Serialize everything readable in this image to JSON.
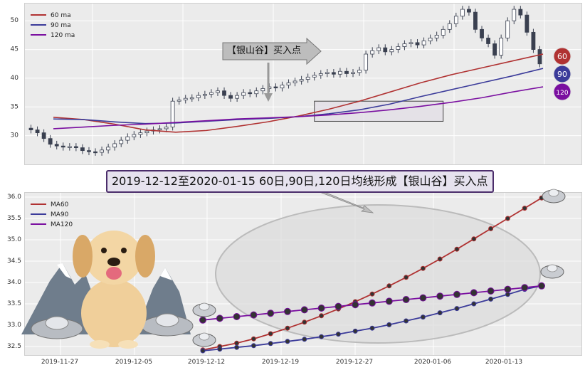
{
  "banner": "2019-12-12至2020-01-15 60日,90日,120日均线形成【银山谷】买入点",
  "callout": "【银山谷】买入点",
  "badges": [
    "60",
    "90",
    "120"
  ],
  "colors": {
    "ma60": "#b03232",
    "ma90": "#3b3b9a",
    "ma120": "#7a0fa0",
    "candle": "#3a4050"
  },
  "chart_data": [
    {
      "type": "candlestick",
      "title": "",
      "ylim": [
        25,
        53
      ],
      "yticks": [
        "30",
        "35",
        "40",
        "45",
        "50"
      ],
      "legend": [
        "60 ma",
        "90 ma",
        "120 ma"
      ],
      "legend_position": "top-left",
      "grid": true,
      "series": [
        {
          "name": "60 ma",
          "values": [
            33.2,
            32.8,
            32.0,
            31.0,
            30.6,
            30.9,
            31.6,
            32.4,
            33.4,
            34.6,
            36.0,
            37.6,
            39.2,
            40.6,
            41.8,
            43.0,
            44.2
          ]
        },
        {
          "name": "90 ma",
          "values": [
            32.9,
            32.8,
            32.4,
            32.1,
            32.2,
            32.5,
            32.8,
            33.0,
            33.3,
            33.8,
            34.5,
            35.5,
            36.8,
            38.0,
            39.2,
            40.4,
            41.7
          ]
        },
        {
          "name": "120 ma",
          "values": [
            31.2,
            31.5,
            31.8,
            32.0,
            32.3,
            32.6,
            32.9,
            33.1,
            33.3,
            33.6,
            34.0,
            34.5,
            35.1,
            35.8,
            36.6,
            37.6,
            38.5
          ]
        }
      ],
      "closes": [
        31,
        30.5,
        29.5,
        28.5,
        28.2,
        28,
        28.1,
        27.9,
        27.4,
        27.2,
        27.1,
        27.5,
        28,
        28.6,
        29.2,
        29.8,
        30.2,
        30.5,
        30.8,
        31,
        31.2,
        31.5,
        36,
        36.2,
        36.5,
        36.6,
        37,
        37.2,
        37.5,
        37.8,
        37,
        36.5,
        37,
        37.5,
        37.3,
        37.8,
        38.2,
        38.5,
        38.3,
        38.8,
        39.2,
        39.5,
        39.8,
        40.2,
        40.5,
        40.8,
        41,
        40.7,
        41.2,
        40.8,
        41,
        41.4,
        44.2,
        44.8,
        45.3,
        44.6,
        45,
        45.5,
        46,
        46.2,
        45.8,
        46.5,
        47,
        47.5,
        48.5,
        49.5,
        50.8,
        52,
        51.5,
        48.5,
        47,
        46,
        44,
        47,
        50,
        52,
        51,
        48,
        45,
        42.5
      ],
      "annotation": {
        "label": "【银山谷】买入点",
        "zone": {
          "x": [
            44,
            64
          ],
          "y": [
            32.5,
            36
          ]
        }
      }
    },
    {
      "type": "line",
      "title": "",
      "x_ticks": [
        "2019-11-27",
        "2019-12-05",
        "2019-12-12",
        "2019-12-19",
        "2019-12-27",
        "2020-01-06",
        "2020-01-13"
      ],
      "ylim": [
        32.3,
        36.1
      ],
      "yticks": [
        "32.5",
        "33.0",
        "33.5",
        "34.0",
        "34.5",
        "35.0",
        "35.5",
        "36.0"
      ],
      "legend": [
        "MA60",
        "MA90",
        "MA120"
      ],
      "legend_position": "top-left",
      "grid": true,
      "series": [
        {
          "name": "MA60",
          "values": [
            32.42,
            32.5,
            32.58,
            32.68,
            32.8,
            32.93,
            33.07,
            33.22,
            33.38,
            33.55,
            33.73,
            33.92,
            34.12,
            34.33,
            34.55,
            34.78,
            35.02,
            35.26,
            35.5,
            35.74,
            35.98
          ]
        },
        {
          "name": "MA90",
          "values": [
            32.4,
            32.44,
            32.48,
            32.52,
            32.57,
            32.62,
            32.67,
            32.73,
            32.79,
            32.86,
            32.93,
            33.01,
            33.1,
            33.19,
            33.29,
            33.39,
            33.5,
            33.61,
            33.72,
            33.84,
            33.92
          ]
        },
        {
          "name": "MA120",
          "values": [
            33.12,
            33.16,
            33.2,
            33.24,
            33.28,
            33.32,
            33.36,
            33.4,
            33.44,
            33.48,
            33.52,
            33.56,
            33.6,
            33.64,
            33.68,
            33.72,
            33.76,
            33.8,
            33.84,
            33.88,
            33.92
          ]
        }
      ]
    }
  ]
}
